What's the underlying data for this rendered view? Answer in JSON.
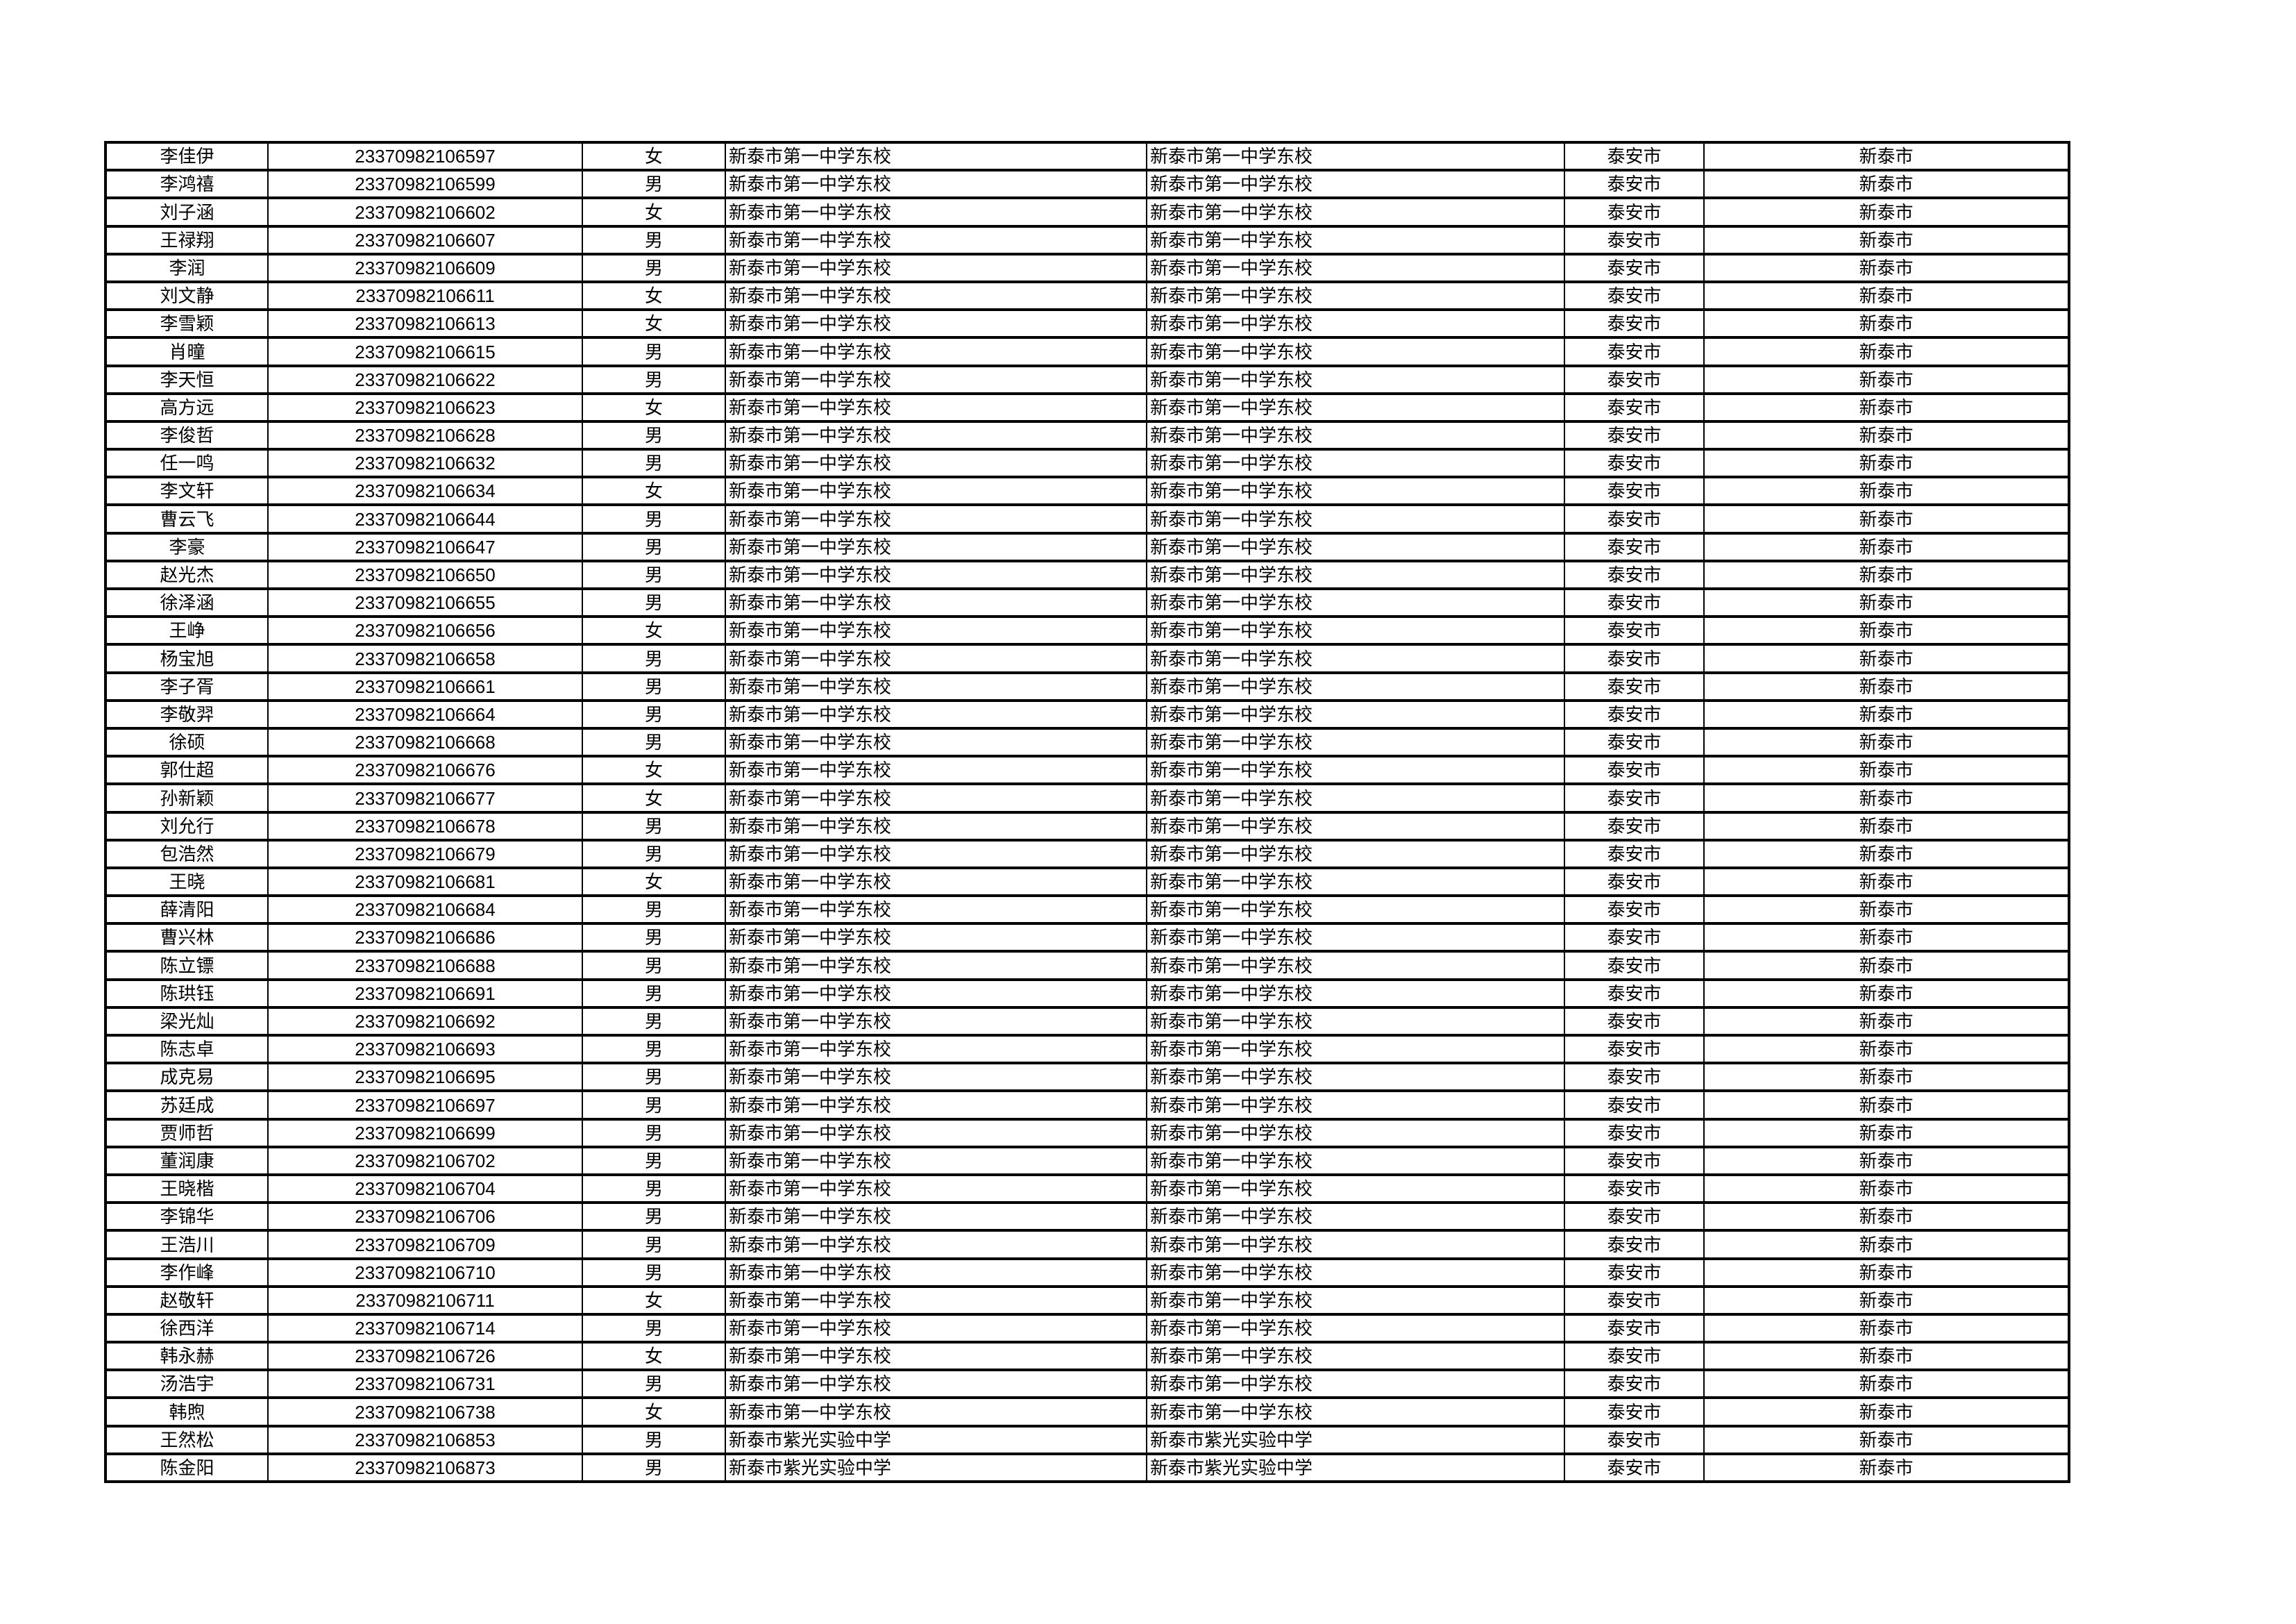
{
  "rows": [
    {
      "name": "李佳伊",
      "id": "23370982106597",
      "gender": "女",
      "school": "新泰市第一中学东校",
      "school2": "新泰市第一中学东校",
      "city": "泰安市",
      "county": "新泰市"
    },
    {
      "name": "李鸿禧",
      "id": "23370982106599",
      "gender": "男",
      "school": "新泰市第一中学东校",
      "school2": "新泰市第一中学东校",
      "city": "泰安市",
      "county": "新泰市"
    },
    {
      "name": "刘子涵",
      "id": "23370982106602",
      "gender": "女",
      "school": "新泰市第一中学东校",
      "school2": "新泰市第一中学东校",
      "city": "泰安市",
      "county": "新泰市"
    },
    {
      "name": "王禄翔",
      "id": "23370982106607",
      "gender": "男",
      "school": "新泰市第一中学东校",
      "school2": "新泰市第一中学东校",
      "city": "泰安市",
      "county": "新泰市"
    },
    {
      "name": "李润",
      "id": "23370982106609",
      "gender": "男",
      "school": "新泰市第一中学东校",
      "school2": "新泰市第一中学东校",
      "city": "泰安市",
      "county": "新泰市"
    },
    {
      "name": "刘文静",
      "id": "23370982106611",
      "gender": "女",
      "school": "新泰市第一中学东校",
      "school2": "新泰市第一中学东校",
      "city": "泰安市",
      "county": "新泰市"
    },
    {
      "name": "李雪颖",
      "id": "23370982106613",
      "gender": "女",
      "school": "新泰市第一中学东校",
      "school2": "新泰市第一中学东校",
      "city": "泰安市",
      "county": "新泰市"
    },
    {
      "name": "肖曈",
      "id": "23370982106615",
      "gender": "男",
      "school": "新泰市第一中学东校",
      "school2": "新泰市第一中学东校",
      "city": "泰安市",
      "county": "新泰市"
    },
    {
      "name": "李天恒",
      "id": "23370982106622",
      "gender": "男",
      "school": "新泰市第一中学东校",
      "school2": "新泰市第一中学东校",
      "city": "泰安市",
      "county": "新泰市"
    },
    {
      "name": "高方远",
      "id": "23370982106623",
      "gender": "女",
      "school": "新泰市第一中学东校",
      "school2": "新泰市第一中学东校",
      "city": "泰安市",
      "county": "新泰市"
    },
    {
      "name": "李俊哲",
      "id": "23370982106628",
      "gender": "男",
      "school": "新泰市第一中学东校",
      "school2": "新泰市第一中学东校",
      "city": "泰安市",
      "county": "新泰市"
    },
    {
      "name": "任一鸣",
      "id": "23370982106632",
      "gender": "男",
      "school": "新泰市第一中学东校",
      "school2": "新泰市第一中学东校",
      "city": "泰安市",
      "county": "新泰市"
    },
    {
      "name": "李文轩",
      "id": "23370982106634",
      "gender": "女",
      "school": "新泰市第一中学东校",
      "school2": "新泰市第一中学东校",
      "city": "泰安市",
      "county": "新泰市"
    },
    {
      "name": "曹云飞",
      "id": "23370982106644",
      "gender": "男",
      "school": "新泰市第一中学东校",
      "school2": "新泰市第一中学东校",
      "city": "泰安市",
      "county": "新泰市"
    },
    {
      "name": "李豪",
      "id": "23370982106647",
      "gender": "男",
      "school": "新泰市第一中学东校",
      "school2": "新泰市第一中学东校",
      "city": "泰安市",
      "county": "新泰市"
    },
    {
      "name": "赵光杰",
      "id": "23370982106650",
      "gender": "男",
      "school": "新泰市第一中学东校",
      "school2": "新泰市第一中学东校",
      "city": "泰安市",
      "county": "新泰市"
    },
    {
      "name": "徐泽涵",
      "id": "23370982106655",
      "gender": "男",
      "school": "新泰市第一中学东校",
      "school2": "新泰市第一中学东校",
      "city": "泰安市",
      "county": "新泰市"
    },
    {
      "name": "王峥",
      "id": "23370982106656",
      "gender": "女",
      "school": "新泰市第一中学东校",
      "school2": "新泰市第一中学东校",
      "city": "泰安市",
      "county": "新泰市"
    },
    {
      "name": "杨宝旭",
      "id": "23370982106658",
      "gender": "男",
      "school": "新泰市第一中学东校",
      "school2": "新泰市第一中学东校",
      "city": "泰安市",
      "county": "新泰市"
    },
    {
      "name": "李子胥",
      "id": "23370982106661",
      "gender": "男",
      "school": "新泰市第一中学东校",
      "school2": "新泰市第一中学东校",
      "city": "泰安市",
      "county": "新泰市"
    },
    {
      "name": "李敬羿",
      "id": "23370982106664",
      "gender": "男",
      "school": "新泰市第一中学东校",
      "school2": "新泰市第一中学东校",
      "city": "泰安市",
      "county": "新泰市"
    },
    {
      "name": "徐硕",
      "id": "23370982106668",
      "gender": "男",
      "school": "新泰市第一中学东校",
      "school2": "新泰市第一中学东校",
      "city": "泰安市",
      "county": "新泰市"
    },
    {
      "name": "郭仕超",
      "id": "23370982106676",
      "gender": "女",
      "school": "新泰市第一中学东校",
      "school2": "新泰市第一中学东校",
      "city": "泰安市",
      "county": "新泰市"
    },
    {
      "name": "孙新颖",
      "id": "23370982106677",
      "gender": "女",
      "school": "新泰市第一中学东校",
      "school2": "新泰市第一中学东校",
      "city": "泰安市",
      "county": "新泰市"
    },
    {
      "name": "刘允行",
      "id": "23370982106678",
      "gender": "男",
      "school": "新泰市第一中学东校",
      "school2": "新泰市第一中学东校",
      "city": "泰安市",
      "county": "新泰市"
    },
    {
      "name": "包浩然",
      "id": "23370982106679",
      "gender": "男",
      "school": "新泰市第一中学东校",
      "school2": "新泰市第一中学东校",
      "city": "泰安市",
      "county": "新泰市"
    },
    {
      "name": "王晓",
      "id": "23370982106681",
      "gender": "女",
      "school": "新泰市第一中学东校",
      "school2": "新泰市第一中学东校",
      "city": "泰安市",
      "county": "新泰市"
    },
    {
      "name": "薛清阳",
      "id": "23370982106684",
      "gender": "男",
      "school": "新泰市第一中学东校",
      "school2": "新泰市第一中学东校",
      "city": "泰安市",
      "county": "新泰市"
    },
    {
      "name": "曹兴林",
      "id": "23370982106686",
      "gender": "男",
      "school": "新泰市第一中学东校",
      "school2": "新泰市第一中学东校",
      "city": "泰安市",
      "county": "新泰市"
    },
    {
      "name": "陈立镖",
      "id": "23370982106688",
      "gender": "男",
      "school": "新泰市第一中学东校",
      "school2": "新泰市第一中学东校",
      "city": "泰安市",
      "county": "新泰市"
    },
    {
      "name": "陈珙钰",
      "id": "23370982106691",
      "gender": "男",
      "school": "新泰市第一中学东校",
      "school2": "新泰市第一中学东校",
      "city": "泰安市",
      "county": "新泰市"
    },
    {
      "name": "梁光灿",
      "id": "23370982106692",
      "gender": "男",
      "school": "新泰市第一中学东校",
      "school2": "新泰市第一中学东校",
      "city": "泰安市",
      "county": "新泰市"
    },
    {
      "name": "陈志卓",
      "id": "23370982106693",
      "gender": "男",
      "school": "新泰市第一中学东校",
      "school2": "新泰市第一中学东校",
      "city": "泰安市",
      "county": "新泰市"
    },
    {
      "name": "成克易",
      "id": "23370982106695",
      "gender": "男",
      "school": "新泰市第一中学东校",
      "school2": "新泰市第一中学东校",
      "city": "泰安市",
      "county": "新泰市"
    },
    {
      "name": "苏廷成",
      "id": "23370982106697",
      "gender": "男",
      "school": "新泰市第一中学东校",
      "school2": "新泰市第一中学东校",
      "city": "泰安市",
      "county": "新泰市"
    },
    {
      "name": "贾师哲",
      "id": "23370982106699",
      "gender": "男",
      "school": "新泰市第一中学东校",
      "school2": "新泰市第一中学东校",
      "city": "泰安市",
      "county": "新泰市"
    },
    {
      "name": "董润康",
      "id": "23370982106702",
      "gender": "男",
      "school": "新泰市第一中学东校",
      "school2": "新泰市第一中学东校",
      "city": "泰安市",
      "county": "新泰市"
    },
    {
      "name": "王晓楷",
      "id": "23370982106704",
      "gender": "男",
      "school": "新泰市第一中学东校",
      "school2": "新泰市第一中学东校",
      "city": "泰安市",
      "county": "新泰市"
    },
    {
      "name": "李锦华",
      "id": "23370982106706",
      "gender": "男",
      "school": "新泰市第一中学东校",
      "school2": "新泰市第一中学东校",
      "city": "泰安市",
      "county": "新泰市"
    },
    {
      "name": "王浩川",
      "id": "23370982106709",
      "gender": "男",
      "school": "新泰市第一中学东校",
      "school2": "新泰市第一中学东校",
      "city": "泰安市",
      "county": "新泰市"
    },
    {
      "name": "李作峰",
      "id": "23370982106710",
      "gender": "男",
      "school": "新泰市第一中学东校",
      "school2": "新泰市第一中学东校",
      "city": "泰安市",
      "county": "新泰市"
    },
    {
      "name": "赵敬轩",
      "id": "23370982106711",
      "gender": "女",
      "school": "新泰市第一中学东校",
      "school2": "新泰市第一中学东校",
      "city": "泰安市",
      "county": "新泰市"
    },
    {
      "name": "徐西洋",
      "id": "23370982106714",
      "gender": "男",
      "school": "新泰市第一中学东校",
      "school2": "新泰市第一中学东校",
      "city": "泰安市",
      "county": "新泰市"
    },
    {
      "name": "韩永赫",
      "id": "23370982106726",
      "gender": "女",
      "school": "新泰市第一中学东校",
      "school2": "新泰市第一中学东校",
      "city": "泰安市",
      "county": "新泰市"
    },
    {
      "name": "汤浩宇",
      "id": "23370982106731",
      "gender": "男",
      "school": "新泰市第一中学东校",
      "school2": "新泰市第一中学东校",
      "city": "泰安市",
      "county": "新泰市"
    },
    {
      "name": "韩煦",
      "id": "23370982106738",
      "gender": "女",
      "school": "新泰市第一中学东校",
      "school2": "新泰市第一中学东校",
      "city": "泰安市",
      "county": "新泰市"
    },
    {
      "name": "王然松",
      "id": "23370982106853",
      "gender": "男",
      "school": "新泰市紫光实验中学",
      "school2": "新泰市紫光实验中学",
      "city": "泰安市",
      "county": "新泰市"
    },
    {
      "name": "陈金阳",
      "id": "23370982106873",
      "gender": "男",
      "school": "新泰市紫光实验中学",
      "school2": "新泰市紫光实验中学",
      "city": "泰安市",
      "county": "新泰市"
    }
  ]
}
